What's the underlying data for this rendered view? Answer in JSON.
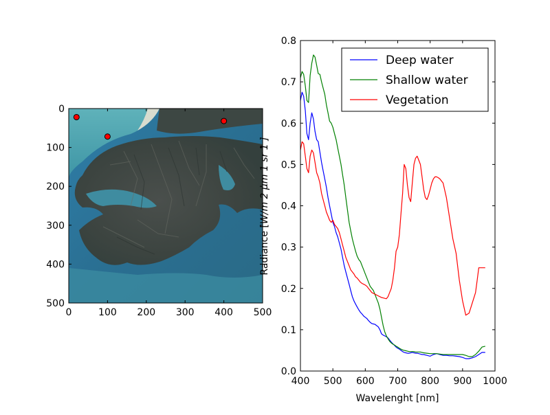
{
  "chart_data": [
    {
      "type": "image",
      "description_of_content": "satellite-image",
      "x_ticks": [
        "0",
        "100",
        "200",
        "300",
        "400",
        "500"
      ],
      "y_ticks": [
        "0",
        "100",
        "200",
        "300",
        "400",
        "500"
      ],
      "xlim": [
        0,
        500
      ],
      "ylim": [
        500,
        0
      ],
      "markers": [
        {
          "x": 20,
          "y": 22
        },
        {
          "x": 100,
          "y": 72
        },
        {
          "x": 400,
          "y": 32
        }
      ],
      "marker_color": "#ff0000",
      "grid": false
    },
    {
      "type": "line",
      "xlabel": "Wavelenght [nm]",
      "ylabel": "Radiance [W/m²/μm/sr]",
      "ylabel_visible": "Radiance [",
      "ylabel_tail_visible": "W/m  2 μm  1 sr  1 ]",
      "xlim": [
        400,
        1000
      ],
      "ylim": [
        0.0,
        0.8
      ],
      "x_ticks": [
        "400",
        "500",
        "600",
        "700",
        "800",
        "900",
        "1000"
      ],
      "y_ticks": [
        "0.0",
        "0.1",
        "0.2",
        "0.3",
        "0.4",
        "0.5",
        "0.6",
        "0.7",
        "0.8"
      ],
      "legend_position": "top-right",
      "grid": false,
      "series": [
        {
          "name": "Deep water",
          "color": "#0000ff",
          "x": [
            400,
            405,
            410,
            415,
            420,
            425,
            430,
            435,
            440,
            445,
            450,
            455,
            460,
            465,
            470,
            475,
            480,
            485,
            490,
            495,
            500,
            505,
            510,
            515,
            520,
            525,
            530,
            535,
            540,
            545,
            550,
            555,
            560,
            565,
            570,
            575,
            580,
            585,
            590,
            595,
            600,
            605,
            610,
            615,
            620,
            625,
            630,
            635,
            640,
            645,
            650,
            655,
            660,
            665,
            670,
            675,
            680,
            685,
            690,
            695,
            700,
            705,
            710,
            715,
            720,
            725,
            730,
            735,
            740,
            745,
            750,
            755,
            760,
            765,
            770,
            775,
            780,
            790,
            800,
            810,
            820,
            830,
            840,
            850,
            860,
            870,
            880,
            890,
            900,
            910,
            920,
            930,
            940,
            950,
            960,
            970
          ],
          "y": [
            0.655,
            0.675,
            0.665,
            0.63,
            0.575,
            0.56,
            0.6,
            0.625,
            0.61,
            0.58,
            0.56,
            0.555,
            0.53,
            0.505,
            0.485,
            0.465,
            0.445,
            0.42,
            0.4,
            0.38,
            0.36,
            0.35,
            0.335,
            0.325,
            0.31,
            0.295,
            0.275,
            0.255,
            0.24,
            0.225,
            0.21,
            0.195,
            0.18,
            0.17,
            0.162,
            0.155,
            0.148,
            0.142,
            0.138,
            0.133,
            0.13,
            0.127,
            0.122,
            0.118,
            0.115,
            0.114,
            0.113,
            0.11,
            0.107,
            0.1,
            0.09,
            0.087,
            0.085,
            0.083,
            0.08,
            0.075,
            0.07,
            0.066,
            0.062,
            0.058,
            0.055,
            0.053,
            0.05,
            0.047,
            0.045,
            0.044,
            0.043,
            0.043,
            0.044,
            0.045,
            0.044,
            0.043,
            0.043,
            0.042,
            0.041,
            0.04,
            0.04,
            0.038,
            0.036,
            0.04,
            0.042,
            0.04,
            0.038,
            0.038,
            0.037,
            0.037,
            0.036,
            0.035,
            0.033,
            0.03,
            0.03,
            0.032,
            0.035,
            0.04,
            0.045,
            0.045
          ]
        },
        {
          "name": "Shallow water",
          "color": "#008000",
          "x": [
            400,
            405,
            410,
            415,
            420,
            425,
            430,
            435,
            440,
            445,
            450,
            455,
            460,
            465,
            470,
            475,
            480,
            485,
            490,
            495,
            500,
            505,
            510,
            515,
            520,
            525,
            530,
            535,
            540,
            545,
            550,
            555,
            560,
            565,
            570,
            575,
            580,
            585,
            590,
            595,
            600,
            605,
            610,
            615,
            620,
            625,
            630,
            635,
            640,
            645,
            650,
            655,
            660,
            665,
            670,
            675,
            680,
            685,
            690,
            695,
            700,
            705,
            710,
            715,
            720,
            725,
            730,
            735,
            740,
            745,
            750,
            755,
            760,
            765,
            770,
            775,
            780,
            790,
            800,
            810,
            820,
            830,
            840,
            850,
            860,
            870,
            880,
            890,
            900,
            910,
            920,
            930,
            940,
            950,
            960,
            970
          ],
          "y": [
            0.71,
            0.725,
            0.718,
            0.69,
            0.655,
            0.65,
            0.715,
            0.745,
            0.765,
            0.76,
            0.74,
            0.72,
            0.718,
            0.7,
            0.685,
            0.67,
            0.645,
            0.625,
            0.605,
            0.6,
            0.59,
            0.575,
            0.56,
            0.54,
            0.52,
            0.5,
            0.475,
            0.45,
            0.42,
            0.39,
            0.36,
            0.34,
            0.32,
            0.305,
            0.29,
            0.278,
            0.27,
            0.265,
            0.255,
            0.245,
            0.235,
            0.225,
            0.215,
            0.205,
            0.2,
            0.195,
            0.185,
            0.175,
            0.165,
            0.15,
            0.13,
            0.11,
            0.095,
            0.085,
            0.078,
            0.072,
            0.068,
            0.065,
            0.063,
            0.06,
            0.058,
            0.055,
            0.053,
            0.051,
            0.05,
            0.049,
            0.048,
            0.047,
            0.047,
            0.047,
            0.047,
            0.046,
            0.046,
            0.046,
            0.046,
            0.045,
            0.044,
            0.043,
            0.042,
            0.042,
            0.042,
            0.041,
            0.04,
            0.04,
            0.04,
            0.04,
            0.04,
            0.04,
            0.04,
            0.038,
            0.035,
            0.035,
            0.04,
            0.048,
            0.058,
            0.06
          ]
        },
        {
          "name": "Vegetation",
          "color": "#ff0000",
          "x": [
            400,
            405,
            410,
            415,
            420,
            425,
            430,
            435,
            440,
            445,
            450,
            455,
            460,
            465,
            470,
            475,
            480,
            485,
            490,
            495,
            500,
            505,
            510,
            515,
            520,
            525,
            530,
            535,
            540,
            545,
            550,
            555,
            560,
            565,
            570,
            575,
            580,
            585,
            590,
            595,
            600,
            605,
            610,
            615,
            620,
            625,
            630,
            635,
            640,
            645,
            650,
            655,
            660,
            665,
            670,
            675,
            680,
            685,
            690,
            695,
            700,
            705,
            710,
            715,
            720,
            725,
            730,
            735,
            740,
            745,
            750,
            755,
            760,
            765,
            770,
            775,
            780,
            785,
            790,
            795,
            800,
            805,
            810,
            815,
            820,
            825,
            830,
            840,
            850,
            860,
            870,
            880,
            890,
            900,
            910,
            920,
            930,
            940,
            945,
            950,
            955,
            960,
            965,
            970
          ],
          "y": [
            0.535,
            0.555,
            0.55,
            0.52,
            0.49,
            0.48,
            0.52,
            0.535,
            0.528,
            0.505,
            0.48,
            0.47,
            0.455,
            0.43,
            0.415,
            0.4,
            0.385,
            0.375,
            0.365,
            0.36,
            0.365,
            0.355,
            0.35,
            0.345,
            0.335,
            0.32,
            0.305,
            0.29,
            0.275,
            0.265,
            0.255,
            0.245,
            0.24,
            0.235,
            0.228,
            0.225,
            0.22,
            0.215,
            0.212,
            0.21,
            0.208,
            0.205,
            0.2,
            0.195,
            0.19,
            0.188,
            0.186,
            0.184,
            0.182,
            0.18,
            0.178,
            0.177,
            0.176,
            0.175,
            0.18,
            0.19,
            0.2,
            0.22,
            0.25,
            0.29,
            0.3,
            0.33,
            0.38,
            0.43,
            0.5,
            0.49,
            0.45,
            0.42,
            0.41,
            0.455,
            0.5,
            0.515,
            0.52,
            0.51,
            0.5,
            0.47,
            0.44,
            0.42,
            0.415,
            0.425,
            0.44,
            0.455,
            0.465,
            0.47,
            0.47,
            0.468,
            0.465,
            0.455,
            0.42,
            0.37,
            0.32,
            0.285,
            0.22,
            0.17,
            0.135,
            0.14,
            0.165,
            0.19,
            0.22,
            0.25,
            0.25,
            0.25,
            0.25,
            0.25
          ]
        }
      ]
    }
  ]
}
